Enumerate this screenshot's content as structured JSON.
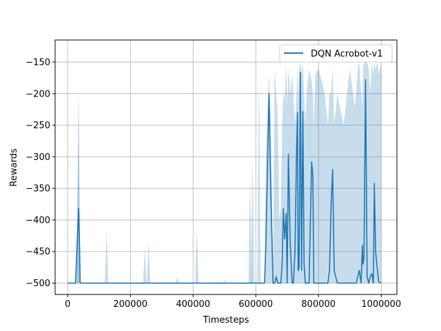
{
  "chart_data": {
    "type": "line",
    "title": "",
    "xlabel": "Timesteps",
    "ylabel": "Rewards",
    "xlim": [
      -40000,
      1050000
    ],
    "ylim": [
      -518,
      -115
    ],
    "grid": true,
    "legend_position": "top-right",
    "x_ticks": [
      0,
      200000,
      400000,
      600000,
      800000,
      1000000
    ],
    "x_tick_labels": [
      "0",
      "200000",
      "400000",
      "600000",
      "800000",
      "1000000"
    ],
    "y_ticks": [
      -500,
      -450,
      -400,
      -350,
      -300,
      -250,
      -200,
      -150
    ],
    "y_tick_labels": [
      "−500",
      "−450",
      "−400",
      "−350",
      "−300",
      "−250",
      "−200",
      "−150"
    ],
    "series": [
      {
        "name": "DQN Acrobot-v1",
        "color": "#1f77b4",
        "fill_color": "#1f77b4",
        "x": [
          0,
          25000,
          30000,
          35000,
          37000,
          40000,
          45000,
          100000,
          200000,
          300000,
          400000,
          500000,
          600000,
          620000,
          628000,
          632000,
          638000,
          642000,
          648000,
          655000,
          660000,
          665000,
          670000,
          675000,
          680000,
          684000,
          688000,
          692000,
          697000,
          700000,
          704000,
          710000,
          716000,
          720000,
          725000,
          730000,
          733000,
          735000,
          738000,
          742000,
          746000,
          750000,
          754000,
          758000,
          762000,
          770000,
          778000,
          782000,
          785000,
          790000,
          800000,
          820000,
          830000,
          835000,
          840000,
          845000,
          850000,
          860000,
          880000,
          900000,
          915000,
          920000,
          925000,
          930000,
          936000,
          940000,
          942000,
          945000,
          950000,
          955000,
          960000,
          965000,
          970000,
          975000,
          978000,
          982000,
          988000,
          992000,
          1000000
        ],
        "values": [
          -500,
          -500,
          -440,
          -382,
          -420,
          -500,
          -500,
          -500,
          -500,
          -500,
          -500,
          -500,
          -500,
          -500,
          -500,
          -440,
          -300,
          -200,
          -360,
          -500,
          -500,
          -490,
          -500,
          -500,
          -500,
          -470,
          -382,
          -430,
          -390,
          -500,
          -296,
          -440,
          -500,
          -500,
          -450,
          -290,
          -230,
          -480,
          -475,
          -166,
          -480,
          -228,
          -470,
          -500,
          -500,
          -500,
          -308,
          -330,
          -500,
          -500,
          -500,
          -500,
          -500,
          -480,
          -380,
          -320,
          -480,
          -500,
          -500,
          -500,
          -500,
          -500,
          -490,
          -480,
          -500,
          -440,
          -470,
          -460,
          -178,
          -490,
          -500,
          -490,
          -485,
          -500,
          -342,
          -450,
          -480,
          -498,
          -500
        ],
        "upper": [
          -500,
          -500,
          -400,
          -205,
          -370,
          -500,
          -500,
          -500,
          -500,
          -500,
          -500,
          -500,
          -500,
          -500,
          -500,
          -300,
          -220,
          -170,
          -240,
          -470,
          -160,
          -200,
          -230,
          -400,
          -380,
          -250,
          -200,
          -210,
          -150,
          -220,
          -160,
          -200,
          -170,
          -200,
          -250,
          -200,
          -160,
          -210,
          -160,
          -150,
          -170,
          -150,
          -200,
          -250,
          -200,
          -160,
          -180,
          -200,
          -250,
          -170,
          -160,
          -200,
          -250,
          -200,
          -200,
          -160,
          -250,
          -200,
          -250,
          -160,
          -220,
          -200,
          -160,
          -150,
          -200,
          -220,
          -160,
          -150,
          -150,
          -150,
          -160,
          -200,
          -150,
          -170,
          -150,
          -160,
          -150,
          -170,
          -150
        ],
        "lower": [
          -500,
          -500,
          -500,
          -500,
          -500,
          -500,
          -500,
          -500,
          -500,
          -500,
          -500,
          -500,
          -500,
          -500,
          -500,
          -500,
          -500,
          -500,
          -500,
          -500,
          -500,
          -500,
          -500,
          -500,
          -500,
          -500,
          -500,
          -500,
          -500,
          -500,
          -500,
          -500,
          -500,
          -500,
          -500,
          -500,
          -500,
          -500,
          -500,
          -500,
          -500,
          -500,
          -500,
          -500,
          -500,
          -500,
          -500,
          -500,
          -500,
          -500,
          -500,
          -500,
          -500,
          -500,
          -500,
          -500,
          -500,
          -500,
          -500,
          -500,
          -500,
          -500,
          -500,
          -500,
          -500,
          -500,
          -500,
          -500,
          -500,
          -500,
          -500,
          -500,
          -500,
          -500,
          -500,
          -500,
          -500,
          -500,
          -500
        ]
      }
    ],
    "band_spikes": [
      {
        "x": 35000,
        "upper": -200
      },
      {
        "x": 124000,
        "upper": -418
      },
      {
        "x": 246000,
        "upper": -445
      },
      {
        "x": 258000,
        "upper": -435
      },
      {
        "x": 350000,
        "upper": -490
      },
      {
        "x": 412000,
        "upper": -415
      },
      {
        "x": 500000,
        "upper": -495
      },
      {
        "x": 582000,
        "upper": -330
      },
      {
        "x": 590000,
        "upper": -300
      },
      {
        "x": 610000,
        "upper": -158
      }
    ]
  }
}
